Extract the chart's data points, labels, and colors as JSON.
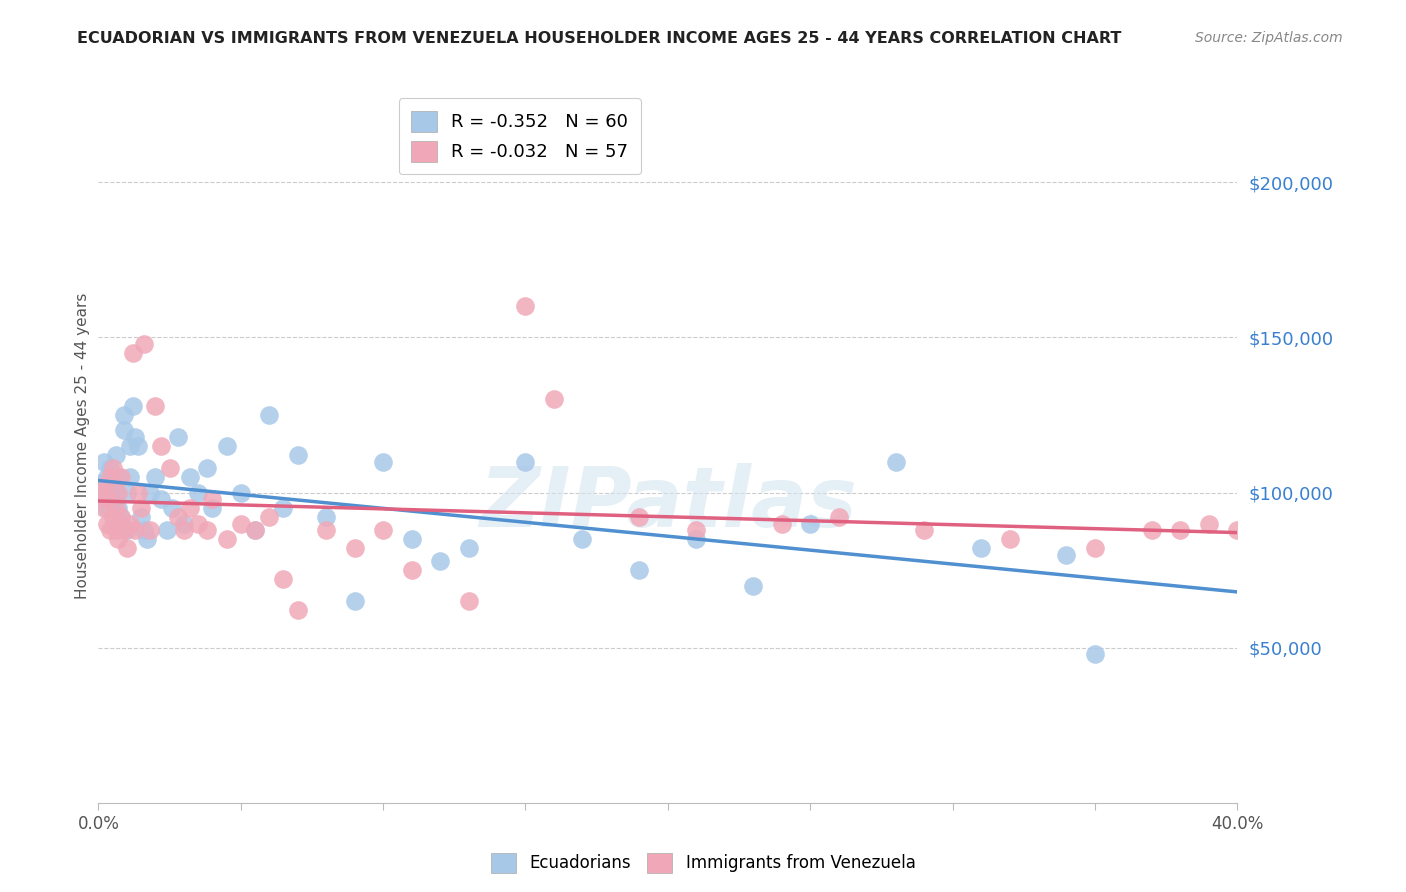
{
  "title": "ECUADORIAN VS IMMIGRANTS FROM VENEZUELA HOUSEHOLDER INCOME AGES 25 - 44 YEARS CORRELATION CHART",
  "source": "Source: ZipAtlas.com",
  "ylabel": "Householder Income Ages 25 - 44 years",
  "xlim": [
    0.0,
    0.4
  ],
  "ylim": [
    0,
    230000
  ],
  "yticks": [
    50000,
    100000,
    150000,
    200000
  ],
  "ytick_labels": [
    "$50,000",
    "$100,000",
    "$150,000",
    "$200,000"
  ],
  "xticks": [
    0.0,
    0.05,
    0.1,
    0.15,
    0.2,
    0.25,
    0.3,
    0.35,
    0.4
  ],
  "xtick_labels": [
    "0.0%",
    "",
    "",
    "",
    "",
    "",
    "",
    "",
    "40.0%"
  ],
  "watermark": "ZIPatlas",
  "blue_color": "#a8c8e8",
  "pink_color": "#f0a8b8",
  "blue_line_color": "#5090d0",
  "pink_line_color": "#e06080",
  "legend1_label": "R = -0.352   N = 60",
  "legend2_label": "R = -0.032   N = 57",
  "legend_label1": "Ecuadorians",
  "legend_label2": "Immigrants from Venezuela",
  "ecuadorians_x": [
    0.001,
    0.002,
    0.002,
    0.003,
    0.003,
    0.004,
    0.004,
    0.005,
    0.005,
    0.006,
    0.006,
    0.007,
    0.007,
    0.008,
    0.008,
    0.009,
    0.009,
    0.01,
    0.01,
    0.011,
    0.011,
    0.012,
    0.013,
    0.014,
    0.015,
    0.016,
    0.017,
    0.018,
    0.02,
    0.022,
    0.024,
    0.026,
    0.028,
    0.03,
    0.032,
    0.035,
    0.038,
    0.04,
    0.045,
    0.05,
    0.055,
    0.06,
    0.065,
    0.07,
    0.08,
    0.09,
    0.1,
    0.11,
    0.12,
    0.13,
    0.15,
    0.17,
    0.19,
    0.21,
    0.23,
    0.25,
    0.28,
    0.31,
    0.34,
    0.35
  ],
  "ecuadorians_y": [
    103000,
    98000,
    110000,
    105000,
    95000,
    100000,
    108000,
    97000,
    103000,
    99000,
    112000,
    95000,
    105000,
    90000,
    92000,
    120000,
    125000,
    88000,
    100000,
    115000,
    105000,
    128000,
    118000,
    115000,
    92000,
    88000,
    85000,
    100000,
    105000,
    98000,
    88000,
    95000,
    118000,
    90000,
    105000,
    100000,
    108000,
    95000,
    115000,
    100000,
    88000,
    125000,
    95000,
    112000,
    92000,
    65000,
    110000,
    85000,
    78000,
    82000,
    110000,
    85000,
    75000,
    85000,
    70000,
    90000,
    110000,
    82000,
    80000,
    48000
  ],
  "venezuela_x": [
    0.001,
    0.002,
    0.002,
    0.003,
    0.003,
    0.004,
    0.004,
    0.005,
    0.005,
    0.006,
    0.006,
    0.007,
    0.007,
    0.008,
    0.008,
    0.009,
    0.01,
    0.011,
    0.012,
    0.013,
    0.014,
    0.015,
    0.016,
    0.018,
    0.02,
    0.022,
    0.025,
    0.028,
    0.03,
    0.032,
    0.035,
    0.038,
    0.04,
    0.045,
    0.05,
    0.055,
    0.06,
    0.065,
    0.07,
    0.08,
    0.09,
    0.1,
    0.11,
    0.13,
    0.15,
    0.16,
    0.19,
    0.21,
    0.24,
    0.26,
    0.29,
    0.32,
    0.35,
    0.37,
    0.38,
    0.39,
    0.4
  ],
  "venezuela_y": [
    100000,
    102000,
    95000,
    98000,
    90000,
    105000,
    88000,
    108000,
    92000,
    95000,
    88000,
    100000,
    85000,
    92000,
    105000,
    88000,
    82000,
    90000,
    145000,
    88000,
    100000,
    95000,
    148000,
    88000,
    128000,
    115000,
    108000,
    92000,
    88000,
    95000,
    90000,
    88000,
    98000,
    85000,
    90000,
    88000,
    92000,
    72000,
    62000,
    88000,
    82000,
    88000,
    75000,
    65000,
    160000,
    130000,
    92000,
    88000,
    90000,
    92000,
    88000,
    85000,
    82000,
    88000,
    88000,
    90000,
    88000
  ]
}
